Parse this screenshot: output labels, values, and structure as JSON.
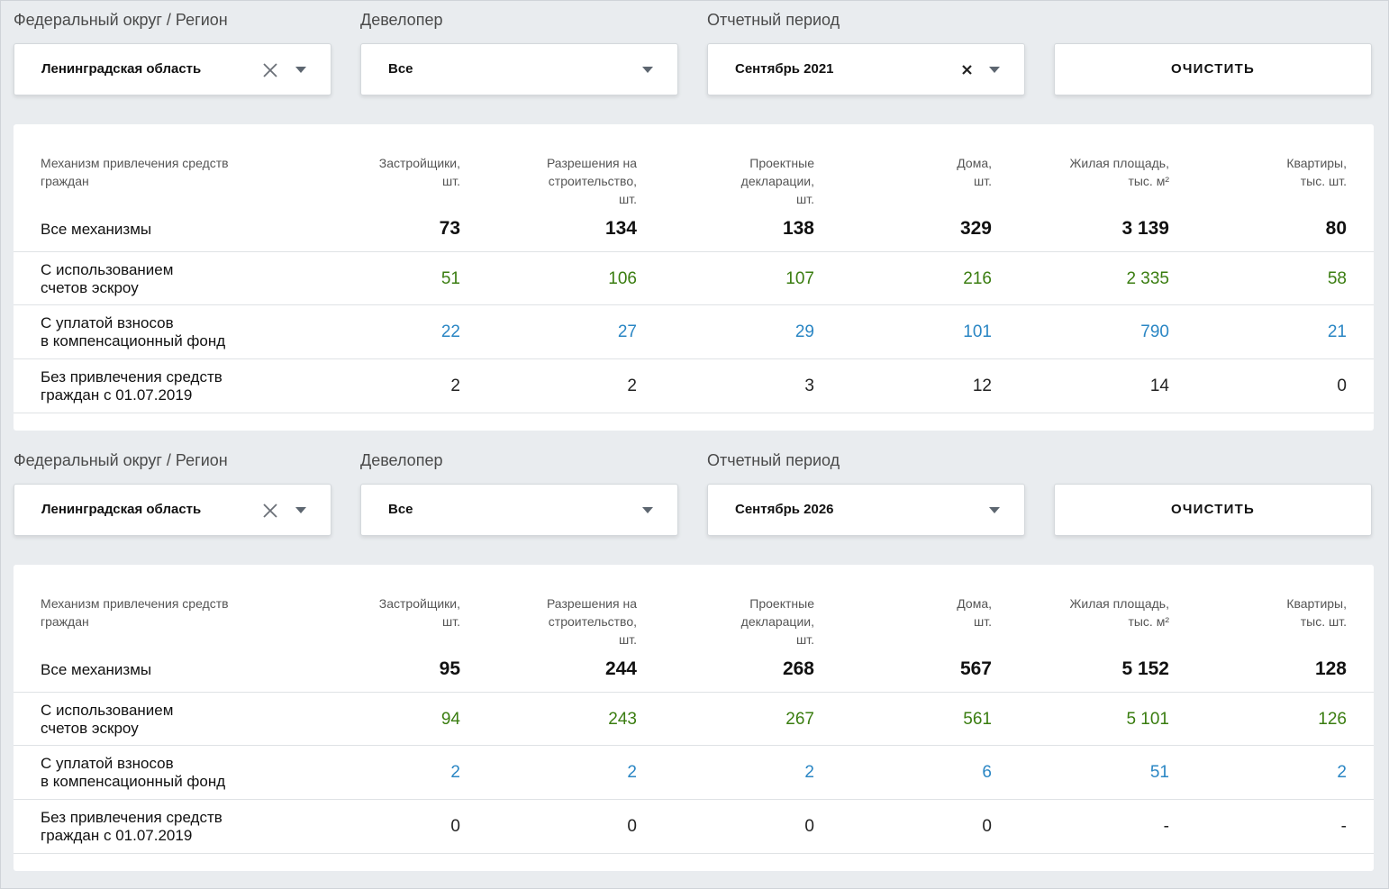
{
  "sections": [
    {
      "filters": {
        "region_label": "Федеральный округ / Регион",
        "region_value": "Ленинградская область",
        "developer_label": "Девелопер",
        "developer_value": "Все",
        "period_label": "Отчетный период",
        "period_value": "Сентябрь 2021",
        "clear_label": "ОЧИСТИТЬ"
      },
      "table": {
        "headers": {
          "mechanism": [
            "Механизм привлечения средств",
            "граждан"
          ],
          "builders": [
            "Застройщики,",
            "шт."
          ],
          "permits": [
            "Разрешения на",
            "строительство,",
            "шт."
          ],
          "declarations": [
            "Проектные",
            "декларации,",
            "шт."
          ],
          "houses": [
            "Дома,",
            "шт."
          ],
          "area": [
            "Жилая площадь,",
            "тыс. м²"
          ],
          "apartments": [
            "Квартиры,",
            "тыс. шт."
          ]
        },
        "rows": [
          {
            "label": [
              "Все механизмы"
            ],
            "values": [
              "73",
              "134",
              "138",
              "329",
              "3 139",
              "80"
            ]
          },
          {
            "label": [
              "С использованием",
              "счетов эскроу"
            ],
            "values": [
              "51",
              "106",
              "107",
              "216",
              "2 335",
              "58"
            ]
          },
          {
            "label": [
              "С уплатой взносов",
              "в компенсационный фонд"
            ],
            "values": [
              "22",
              "27",
              "29",
              "101",
              "790",
              "21"
            ]
          },
          {
            "label": [
              "Без привлечения средств",
              "граждан с 01.07.2019"
            ],
            "values": [
              "2",
              "2",
              "3",
              "12",
              "14",
              "0"
            ]
          }
        ]
      }
    },
    {
      "filters": {
        "region_label": "Федеральный округ / Регион",
        "region_value": "Ленинградская область",
        "developer_label": "Девелопер",
        "developer_value": "Все",
        "period_label": "Отчетный период",
        "period_value": "Сентябрь 2026",
        "clear_label": "ОЧИСТИТЬ"
      },
      "table": {
        "headers": {
          "mechanism": [
            "Механизм привлечения средств",
            "граждан"
          ],
          "builders": [
            "Застройщики,",
            "шт."
          ],
          "permits": [
            "Разрешения на",
            "строительство,",
            "шт."
          ],
          "declarations": [
            "Проектные",
            "декларации,",
            "шт."
          ],
          "houses": [
            "Дома,",
            "шт."
          ],
          "area": [
            "Жилая площадь,",
            "тыс. м²"
          ],
          "apartments": [
            "Квартиры,",
            "тыс. шт."
          ]
        },
        "rows": [
          {
            "label": [
              "Все механизмы"
            ],
            "values": [
              "95",
              "244",
              "268",
              "567",
              "5 152",
              "128"
            ]
          },
          {
            "label": [
              "С использованием",
              "счетов эскроу"
            ],
            "values": [
              "94",
              "243",
              "267",
              "561",
              "5 101",
              "126"
            ]
          },
          {
            "label": [
              "С уплатой взносов",
              "в компенсационный фонд"
            ],
            "values": [
              "2",
              "2",
              "2",
              "6",
              "51",
              "2"
            ]
          },
          {
            "label": [
              "Без привлечения средств",
              "граждан с 01.07.2019"
            ],
            "values": [
              "0",
              "0",
              "0",
              "0",
              "-",
              "-"
            ]
          }
        ]
      }
    }
  ],
  "colors": {
    "escrow": "#3a7d10",
    "fund": "#2a86c4",
    "background": "#e9ecef"
  },
  "icons": [
    "clear-x-icon",
    "dropdown-caret-icon"
  ]
}
